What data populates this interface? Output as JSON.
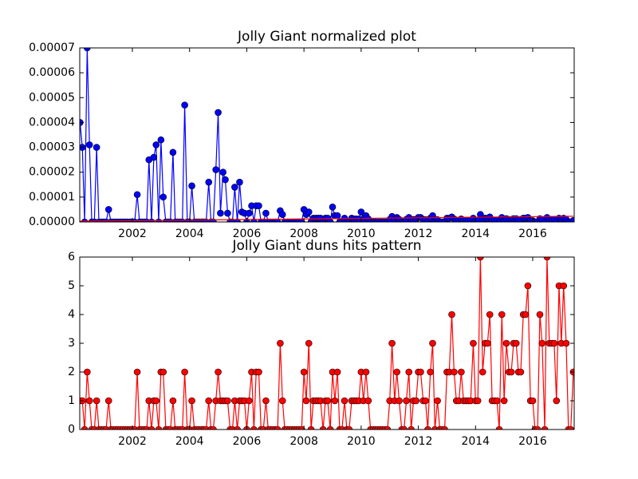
{
  "chart_data": [
    {
      "type": "line",
      "title": "Jolly Giant normalized plot",
      "x": [
        2000.17,
        2000.25,
        2000.33,
        2000.42,
        2000.5,
        2000.58,
        2000.67,
        2000.75,
        2000.83,
        2000.92,
        2001,
        2001.08,
        2001.17,
        2001.25,
        2001.33,
        2001.42,
        2001.5,
        2001.58,
        2001.67,
        2001.75,
        2001.83,
        2001.92,
        2002,
        2002.08,
        2002.17,
        2002.25,
        2002.33,
        2002.42,
        2002.5,
        2002.58,
        2002.67,
        2002.75,
        2002.83,
        2002.92,
        2003,
        2003.08,
        2003.17,
        2003.25,
        2003.33,
        2003.42,
        2003.5,
        2003.58,
        2003.67,
        2003.75,
        2003.83,
        2003.92,
        2004,
        2004.08,
        2004.17,
        2004.25,
        2004.33,
        2004.42,
        2004.5,
        2004.58,
        2004.67,
        2004.75,
        2004.83,
        2004.92,
        2005,
        2005.08,
        2005.17,
        2005.25,
        2005.33,
        2005.42,
        2005.5,
        2005.58,
        2005.67,
        2005.75,
        2005.83,
        2005.92,
        2006,
        2006.08,
        2006.17,
        2006.25,
        2006.33,
        2006.42,
        2006.5,
        2006.58,
        2006.67,
        2006.75,
        2006.83,
        2006.92,
        2007,
        2007.08,
        2007.17,
        2007.25,
        2007.33,
        2007.42,
        2007.5,
        2007.58,
        2007.67,
        2007.75,
        2007.83,
        2007.92,
        2008,
        2008.08,
        2008.17,
        2008.25,
        2008.33,
        2008.42,
        2008.5,
        2008.58,
        2008.67,
        2008.75,
        2008.83,
        2008.92,
        2009,
        2009.08,
        2009.17,
        2009.25,
        2009.33,
        2009.42,
        2009.5,
        2009.58,
        2009.67,
        2009.75,
        2009.83,
        2009.92,
        2010,
        2010.08,
        2010.17,
        2010.25,
        2010.33,
        2010.42,
        2010.5,
        2010.58,
        2010.67,
        2010.75,
        2010.83,
        2010.92,
        2011,
        2011.08,
        2011.17,
        2011.25,
        2011.33,
        2011.42,
        2011.5,
        2011.58,
        2011.67,
        2011.75,
        2011.83,
        2011.92,
        2012,
        2012.08,
        2012.17,
        2012.25,
        2012.33,
        2012.42,
        2012.5,
        2012.58,
        2012.67,
        2012.75,
        2012.83,
        2012.92,
        2013,
        2013.08,
        2013.17,
        2013.25,
        2013.33,
        2013.42,
        2013.5,
        2013.58,
        2013.67,
        2013.75,
        2013.83,
        2013.92,
        2014,
        2014.08,
        2014.17,
        2014.25,
        2014.33,
        2014.42,
        2014.5,
        2014.58,
        2014.67,
        2014.75,
        2014.83,
        2014.92,
        2015,
        2015.08,
        2015.17,
        2015.25,
        2015.33,
        2015.42,
        2015.5,
        2015.58,
        2015.67,
        2015.75,
        2015.83,
        2015.92,
        2016,
        2016.08,
        2016.17,
        2016.25,
        2016.33,
        2016.42,
        2016.5,
        2016.58,
        2016.67,
        2016.75,
        2016.83,
        2016.92,
        2017,
        2017.08,
        2017.17,
        2017.25,
        2017.33,
        2017.42
      ],
      "series": [
        {
          "color": "#0000ff",
          "marker": true,
          "values": [
            4e-05,
            3e-05,
            0,
            7e-05,
            3.1e-05,
            0,
            0,
            3e-05,
            0,
            0,
            0,
            0,
            5e-06,
            0,
            0,
            0,
            0,
            0,
            0,
            0,
            0,
            0,
            0,
            0,
            1.1e-05,
            0,
            0,
            0,
            0,
            2.5e-05,
            0,
            2.6e-05,
            3.1e-05,
            0,
            3.3e-05,
            1e-05,
            0,
            0,
            0,
            2.8e-05,
            0,
            0,
            0,
            0,
            4.7e-05,
            0,
            0,
            1.45e-05,
            0,
            0,
            0,
            0,
            0,
            0,
            1.6e-05,
            0,
            0,
            2.1e-05,
            4.4e-05,
            3.5e-06,
            2e-05,
            1.7e-05,
            3.5e-06,
            0,
            0,
            1.4e-05,
            0,
            1.6e-05,
            4e-06,
            3.5e-06,
            0,
            3.5e-06,
            6.5e-06,
            0,
            6.5e-06,
            6.5e-06,
            0,
            0,
            3.5e-06,
            0,
            0,
            0,
            0,
            0,
            4.5e-06,
            3e-06,
            0,
            0,
            0,
            0,
            0,
            0,
            0,
            0,
            5e-06,
            3e-06,
            4e-06,
            0,
            1.5e-06,
            1.5e-06,
            1.5e-06,
            1.5e-06,
            0,
            1.5e-06,
            1.5e-06,
            0,
            6e-06,
            2.5e-06,
            2.5e-06,
            0,
            0,
            1.5e-06,
            0,
            0,
            1.5e-06,
            1.2e-06,
            1.2e-06,
            1.2e-06,
            4e-06,
            1.2e-06,
            2.5e-06,
            1.2e-06,
            0,
            0,
            0,
            0,
            0,
            0,
            0,
            0,
            1e-06,
            2.2e-06,
            1e-06,
            1.8e-06,
            1e-06,
            0,
            0,
            1e-06,
            1.8e-06,
            0,
            1e-06,
            1e-06,
            1.8e-06,
            1.8e-06,
            9e-07,
            9e-07,
            0,
            1.5e-06,
            2.5e-06,
            0,
            9e-07,
            0,
            0,
            0,
            1.5e-06,
            1.5e-06,
            2e-06,
            1.2e-06,
            7e-07,
            7e-07,
            1.2e-06,
            7e-07,
            7e-07,
            7e-07,
            7e-07,
            1.5e-06,
            7e-07,
            7e-07,
            3e-06,
            1.2e-06,
            1.5e-06,
            1.5e-06,
            2e-06,
            6e-07,
            6e-07,
            6e-07,
            0,
            1.8e-06,
            6e-07,
            1.3e-06,
            1e-06,
            1e-06,
            1.3e-06,
            1.3e-06,
            1e-06,
            1e-06,
            1.5e-06,
            1.5e-06,
            1.8e-06,
            5e-07,
            5e-07,
            0,
            0,
            1.3e-06,
            1e-06,
            0,
            1.8e-06,
            1e-06,
            1e-06,
            1e-06,
            4e-07,
            1.5e-06,
            1e-06,
            1.5e-06,
            1e-06,
            0,
            0,
            6e-07
          ]
        },
        {
          "color": "#ff0000",
          "marker": false,
          "x": [
            2000.17,
            2017.42
          ],
          "values": [
            3e-07,
            2.3e-06
          ]
        }
      ],
      "xlim": [
        2000.16,
        2017.45
      ],
      "xticks": [
        2002,
        2004,
        2006,
        2008,
        2010,
        2012,
        2014,
        2016
      ],
      "ylim": [
        0,
        7e-05
      ],
      "yticks": [
        {
          "value": 0,
          "label": "0.00000"
        },
        1e-05,
        2e-05,
        3e-05,
        4e-05,
        5e-05,
        6e-05,
        7e-05
      ]
    },
    {
      "type": "line",
      "title": "Jolly Giant duns hits pattern",
      "x": [
        2000.17,
        2000.25,
        2000.33,
        2000.42,
        2000.5,
        2000.58,
        2000.67,
        2000.75,
        2000.83,
        2000.92,
        2001,
        2001.08,
        2001.17,
        2001.25,
        2001.33,
        2001.42,
        2001.5,
        2001.58,
        2001.67,
        2001.75,
        2001.83,
        2001.92,
        2002,
        2002.08,
        2002.17,
        2002.25,
        2002.33,
        2002.42,
        2002.5,
        2002.58,
        2002.67,
        2002.75,
        2002.83,
        2002.92,
        2003,
        2003.08,
        2003.17,
        2003.25,
        2003.33,
        2003.42,
        2003.5,
        2003.58,
        2003.67,
        2003.75,
        2003.83,
        2003.92,
        2004,
        2004.08,
        2004.17,
        2004.25,
        2004.33,
        2004.42,
        2004.5,
        2004.58,
        2004.67,
        2004.75,
        2004.83,
        2004.92,
        2005,
        2005.08,
        2005.17,
        2005.25,
        2005.33,
        2005.42,
        2005.5,
        2005.58,
        2005.67,
        2005.75,
        2005.83,
        2005.92,
        2006,
        2006.08,
        2006.17,
        2006.25,
        2006.33,
        2006.42,
        2006.5,
        2006.58,
        2006.67,
        2006.75,
        2006.83,
        2006.92,
        2007,
        2007.08,
        2007.17,
        2007.25,
        2007.33,
        2007.42,
        2007.5,
        2007.58,
        2007.67,
        2007.75,
        2007.83,
        2007.92,
        2008,
        2008.08,
        2008.17,
        2008.25,
        2008.33,
        2008.42,
        2008.5,
        2008.58,
        2008.67,
        2008.75,
        2008.83,
        2008.92,
        2009,
        2009.08,
        2009.17,
        2009.25,
        2009.33,
        2009.42,
        2009.5,
        2009.58,
        2009.67,
        2009.75,
        2009.83,
        2009.92,
        2010,
        2010.08,
        2010.17,
        2010.25,
        2010.33,
        2010.42,
        2010.5,
        2010.58,
        2010.67,
        2010.75,
        2010.83,
        2010.92,
        2011,
        2011.08,
        2011.17,
        2011.25,
        2011.33,
        2011.42,
        2011.5,
        2011.58,
        2011.67,
        2011.75,
        2011.83,
        2011.92,
        2012,
        2012.08,
        2012.17,
        2012.25,
        2012.33,
        2012.42,
        2012.5,
        2012.58,
        2012.67,
        2012.75,
        2012.83,
        2012.92,
        2013,
        2013.08,
        2013.17,
        2013.25,
        2013.33,
        2013.42,
        2013.5,
        2013.58,
        2013.67,
        2013.75,
        2013.83,
        2013.92,
        2014,
        2014.08,
        2014.17,
        2014.25,
        2014.33,
        2014.42,
        2014.5,
        2014.58,
        2014.67,
        2014.75,
        2014.83,
        2014.92,
        2015,
        2015.08,
        2015.17,
        2015.25,
        2015.33,
        2015.42,
        2015.5,
        2015.58,
        2015.67,
        2015.75,
        2015.83,
        2015.92,
        2016,
        2016.08,
        2016.17,
        2016.25,
        2016.33,
        2016.42,
        2016.5,
        2016.58,
        2016.67,
        2016.75,
        2016.83,
        2016.92,
        2017,
        2017.08,
        2017.17,
        2017.25,
        2017.33,
        2017.42
      ],
      "series": [
        {
          "color": "#ff0000",
          "marker": true,
          "values": [
            1,
            1,
            0,
            2,
            1,
            0,
            0,
            1,
            0,
            0,
            0,
            0,
            1,
            0,
            0,
            0,
            0,
            0,
            0,
            0,
            0,
            0,
            0,
            0,
            2,
            0,
            0,
            0,
            0,
            1,
            0,
            1,
            1,
            0,
            2,
            2,
            0,
            0,
            0,
            1,
            0,
            0,
            0,
            0,
            2,
            0,
            0,
            1,
            0,
            0,
            0,
            0,
            0,
            0,
            1,
            0,
            0,
            1,
            2,
            1,
            1,
            1,
            1,
            0,
            0,
            1,
            0,
            1,
            1,
            1,
            0,
            1,
            2,
            0,
            2,
            2,
            0,
            0,
            1,
            0,
            0,
            0,
            0,
            0,
            3,
            1,
            0,
            0,
            0,
            0,
            0,
            0,
            0,
            0,
            2,
            1,
            3,
            0,
            1,
            1,
            1,
            1,
            0,
            1,
            1,
            0,
            2,
            1,
            2,
            0,
            0,
            1,
            0,
            0,
            1,
            1,
            1,
            1,
            2,
            1,
            2,
            1,
            0,
            0,
            0,
            0,
            0,
            0,
            0,
            0,
            1,
            3,
            1,
            2,
            1,
            0,
            0,
            1,
            2,
            0,
            1,
            1,
            2,
            2,
            1,
            1,
            0,
            2,
            3,
            0,
            1,
            0,
            0,
            0,
            2,
            2,
            4,
            2,
            1,
            1,
            2,
            1,
            1,
            1,
            1,
            3,
            1,
            1,
            6,
            2,
            3,
            3,
            4,
            1,
            1,
            1,
            0,
            4,
            1,
            3,
            2,
            2,
            3,
            3,
            2,
            2,
            4,
            4,
            5,
            1,
            1,
            0,
            0,
            4,
            3,
            0,
            6,
            3,
            3,
            3,
            1,
            5,
            3,
            5,
            3,
            0,
            0,
            2
          ]
        }
      ],
      "xlim": [
        2000.16,
        2017.45
      ],
      "xticks": [
        2002,
        2004,
        2006,
        2008,
        2010,
        2012,
        2014,
        2016
      ],
      "ylim": [
        0,
        6
      ],
      "yticks": [
        0,
        1,
        2,
        3,
        4,
        5,
        6
      ]
    }
  ]
}
